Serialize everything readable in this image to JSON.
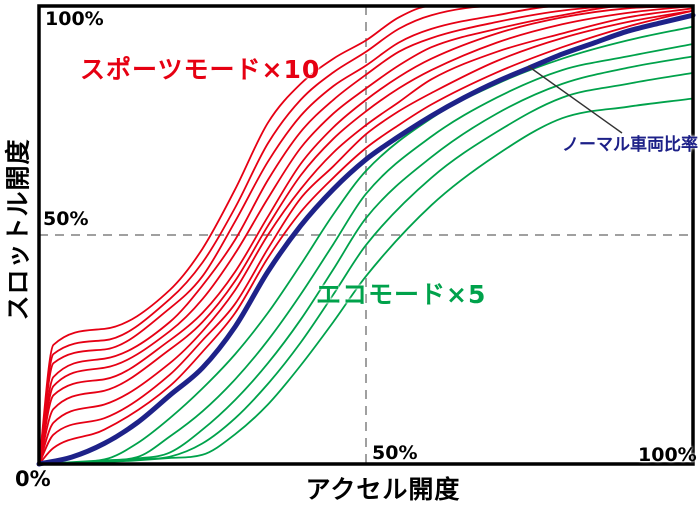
{
  "chart": {
    "x_axis_title": "アクセル開度",
    "y_axis_title": "スロットル開度",
    "ticks": {
      "y_top": "100%",
      "y_mid": "50%",
      "origin": "0%",
      "x_mid": "50%",
      "x_right": "100%"
    },
    "series_labels": {
      "sport": "スポーツモード×10",
      "eco": "エコモード×5",
      "normal": "ノーマル車両比率"
    }
  },
  "colors": {
    "sport": "#e60014",
    "sport_text": "#e60012",
    "eco": "#00a24b",
    "eco_text": "#00a24b",
    "normal": "#1e2289",
    "normal_text": "#1d2088",
    "grid": "#a0a0a0",
    "border": "#000000",
    "leader": "#333333"
  },
  "chart_data": {
    "type": "line",
    "title": "",
    "xlabel": "アクセル開度 (%)",
    "ylabel": "スロットル開度 (%)",
    "xlim": [
      0,
      100
    ],
    "ylim": [
      0,
      100
    ],
    "x_ticks": [
      "0%",
      "50%",
      "100%"
    ],
    "y_ticks": [
      "0%",
      "50%",
      "100%"
    ],
    "gridlines": {
      "x": [
        50
      ],
      "y": [
        50
      ],
      "style": "dashed"
    },
    "legend": "in-plot text annotations",
    "series": [
      {
        "name": "eco-5",
        "group": "eco",
        "width": 1.8,
        "x": [
          0,
          10,
          15,
          20,
          25,
          30,
          35,
          40,
          45,
          50,
          60,
          70,
          80,
          90,
          100
        ],
        "y": [
          0,
          0.4,
          0.8,
          1.3,
          2,
          6.5,
          13,
          21.5,
          31,
          41,
          56.5,
          67.5,
          75.5,
          78,
          79.8
        ]
      },
      {
        "name": "eco-4",
        "group": "eco",
        "width": 1.8,
        "x": [
          0,
          10,
          15,
          20,
          25,
          30,
          35,
          40,
          45,
          50,
          60,
          70,
          80,
          90,
          100
        ],
        "y": [
          0,
          0.5,
          1,
          1.6,
          4.5,
          10,
          17.5,
          26.5,
          37,
          47.8,
          62.5,
          72.5,
          80,
          83,
          85.4
        ]
      },
      {
        "name": "eco-3",
        "group": "eco",
        "width": 1.8,
        "x": [
          0,
          10,
          15,
          20,
          25,
          30,
          35,
          40,
          45,
          50,
          60,
          70,
          80,
          90,
          100
        ],
        "y": [
          0,
          0.6,
          1.2,
          2.5,
          7.5,
          14,
          22,
          31.5,
          42.5,
          53.7,
          67,
          76.5,
          83,
          86.5,
          89
        ]
      },
      {
        "name": "eco-2",
        "group": "eco",
        "width": 1.8,
        "x": [
          0,
          10,
          15,
          20,
          25,
          30,
          35,
          40,
          45,
          50,
          60,
          70,
          80,
          90,
          100
        ],
        "y": [
          0,
          0.8,
          1.5,
          6,
          11.5,
          18.5,
          27,
          37,
          48,
          59,
          71.5,
          80,
          86,
          89,
          91.7
        ]
      },
      {
        "name": "eco-1",
        "group": "eco",
        "width": 1.8,
        "x": [
          0,
          10,
          15,
          20,
          25,
          30,
          35,
          40,
          45,
          50,
          60,
          70,
          80,
          90,
          100
        ],
        "y": [
          0,
          1,
          4.5,
          10,
          16.5,
          24,
          33,
          43.5,
          54.5,
          64,
          75.5,
          83,
          88.5,
          92.5,
          95.5
        ]
      },
      {
        "name": "sport-1",
        "group": "sport",
        "width": 1.8,
        "x": [
          0,
          2.2,
          10,
          20,
          25,
          30,
          35,
          40,
          45,
          50,
          55,
          60,
          70,
          80,
          90,
          100
        ],
        "y": [
          0,
          3.5,
          7.5,
          17,
          24.5,
          33,
          45,
          55,
          62.5,
          69,
          74,
          78.5,
          85.5,
          91,
          95.5,
          99
        ]
      },
      {
        "name": "sport-2",
        "group": "sport",
        "width": 1.8,
        "x": [
          0,
          2.2,
          10,
          20,
          25,
          30,
          35,
          40,
          45,
          50,
          55,
          60,
          70,
          80,
          90,
          100
        ],
        "y": [
          0,
          6.4,
          10,
          19.5,
          27,
          35,
          47,
          58,
          65,
          72,
          77,
          81,
          88,
          93,
          96.5,
          99
        ]
      },
      {
        "name": "sport-3",
        "group": "sport",
        "width": 1.8,
        "x": [
          0,
          2.2,
          10,
          20,
          25,
          30,
          35,
          40,
          45,
          50,
          55,
          60,
          70,
          80,
          90,
          100
        ],
        "y": [
          0,
          9,
          13,
          22,
          29,
          38,
          50,
          60,
          68,
          74,
          79,
          84,
          90,
          94,
          97.5,
          99.5
        ]
      },
      {
        "name": "sport-4",
        "group": "sport",
        "width": 1.8,
        "x": [
          0,
          2.2,
          10,
          20,
          25,
          30,
          35,
          40,
          45,
          50,
          55,
          60,
          70,
          80,
          90,
          100
        ],
        "y": [
          0,
          12,
          16,
          25,
          31,
          40,
          52,
          63,
          71,
          77,
          82,
          86,
          92,
          96,
          98.5,
          100
        ]
      },
      {
        "name": "sport-5",
        "group": "sport",
        "width": 1.8,
        "x": [
          0,
          2.2,
          10,
          20,
          25,
          30,
          35,
          40,
          45,
          50,
          55,
          60,
          70,
          80,
          90,
          100
        ],
        "y": [
          0,
          15,
          18.5,
          27,
          33,
          42,
          54,
          65.5,
          73.5,
          79.5,
          84.5,
          88.5,
          94,
          97.5,
          99.5,
          100
        ]
      },
      {
        "name": "sport-6",
        "group": "sport",
        "width": 1.8,
        "x": [
          0,
          2.2,
          10,
          20,
          25,
          30,
          35,
          40,
          45,
          50,
          55,
          60,
          70,
          80,
          90,
          100
        ],
        "y": [
          0,
          17,
          21,
          29,
          36,
          46,
          58,
          69,
          76.5,
          82,
          87,
          91,
          95,
          98,
          100,
          100
        ]
      },
      {
        "name": "sport-7",
        "group": "sport",
        "width": 1.8,
        "x": [
          0,
          2.2,
          10,
          20,
          25,
          30,
          35,
          40,
          45,
          50,
          55,
          60,
          70,
          80,
          90,
          100
        ],
        "y": [
          0,
          19,
          23,
          31,
          39,
          49,
          62,
          72.5,
          79.5,
          85,
          90,
          93,
          96.5,
          99,
          100,
          100
        ]
      },
      {
        "name": "sport-8",
        "group": "sport",
        "width": 1.8,
        "x": [
          0,
          2.2,
          10,
          20,
          25,
          30,
          35,
          40,
          45,
          50,
          55,
          60,
          70,
          80,
          90,
          100
        ],
        "y": [
          0,
          22,
          25,
          34,
          41,
          53,
          66,
          76,
          82.5,
          87,
          92,
          95,
          98,
          100,
          100,
          100
        ]
      },
      {
        "name": "sport-9",
        "group": "sport",
        "width": 1.8,
        "x": [
          0,
          2.2,
          10,
          20,
          25,
          30,
          35,
          40,
          45,
          50,
          55,
          60,
          70,
          80,
          90,
          100
        ],
        "y": [
          0,
          24,
          27,
          36,
          44,
          56,
          70,
          79.5,
          85.5,
          90,
          95,
          98,
          100,
          100,
          100,
          100
        ]
      },
      {
        "name": "sport-10",
        "group": "sport",
        "width": 1.8,
        "x": [
          0,
          2.2,
          10,
          20,
          25,
          30,
          35,
          40,
          45,
          50,
          55,
          60,
          70,
          80,
          90,
          100
        ],
        "y": [
          0,
          26,
          29.5,
          38,
          47,
          60,
          74.5,
          83,
          88.5,
          92.5,
          97.5,
          100,
          100,
          100,
          100,
          100
        ]
      },
      {
        "name": "normal",
        "group": "normal",
        "width": 5,
        "x": [
          0,
          5,
          10,
          15,
          20,
          25,
          30,
          35,
          40,
          45,
          50,
          55,
          60,
          65,
          70,
          75,
          80,
          85,
          90,
          95,
          100
        ],
        "y": [
          0,
          1.5,
          4.5,
          9,
          15,
          21,
          30,
          42,
          52,
          60,
          66.5,
          71.5,
          76,
          80,
          83.5,
          86.5,
          89.5,
          92,
          94.5,
          96.3,
          98
        ]
      }
    ]
  }
}
